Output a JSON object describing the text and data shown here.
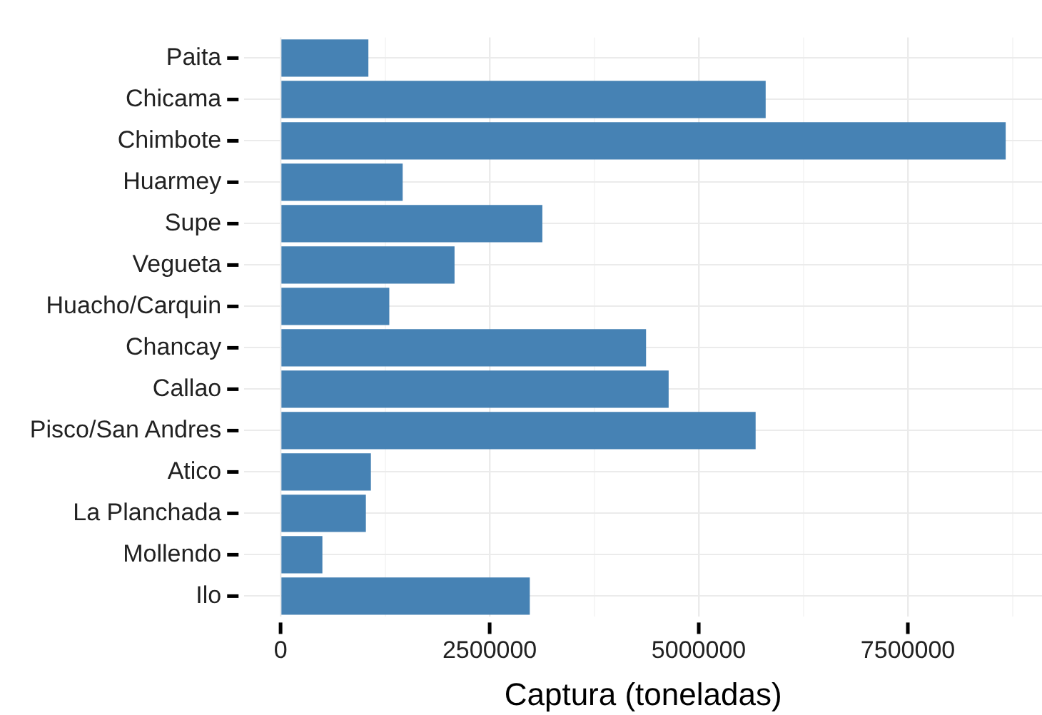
{
  "chart_data": {
    "type": "bar",
    "orientation": "horizontal",
    "xlabel": "Captura (toneladas)",
    "categories": [
      "Paita",
      "Chicama",
      "Chimbote",
      "Huarmey",
      "Supe",
      "Vegueta",
      "Huacho/Carquin",
      "Chancay",
      "Callao",
      "Pisco/San Andres",
      "Atico",
      "La Planchada",
      "Mollendo",
      "Ilo"
    ],
    "values": [
      1050000,
      5800000,
      8670000,
      1460000,
      3130000,
      2080000,
      1300000,
      4370000,
      4640000,
      5680000,
      1080000,
      1020000,
      500000,
      2980000
    ],
    "color": "#4682b4",
    "xlim": [
      -434000,
      9104000
    ],
    "xticks": [
      0,
      {
        "value": 1250000,
        "label": null
      },
      2500000,
      {
        "value": 3750000,
        "label": null
      },
      5000000,
      {
        "value": 6250000,
        "label": null
      },
      7500000,
      {
        "value": 8750000,
        "label": null
      }
    ],
    "grid": true
  }
}
